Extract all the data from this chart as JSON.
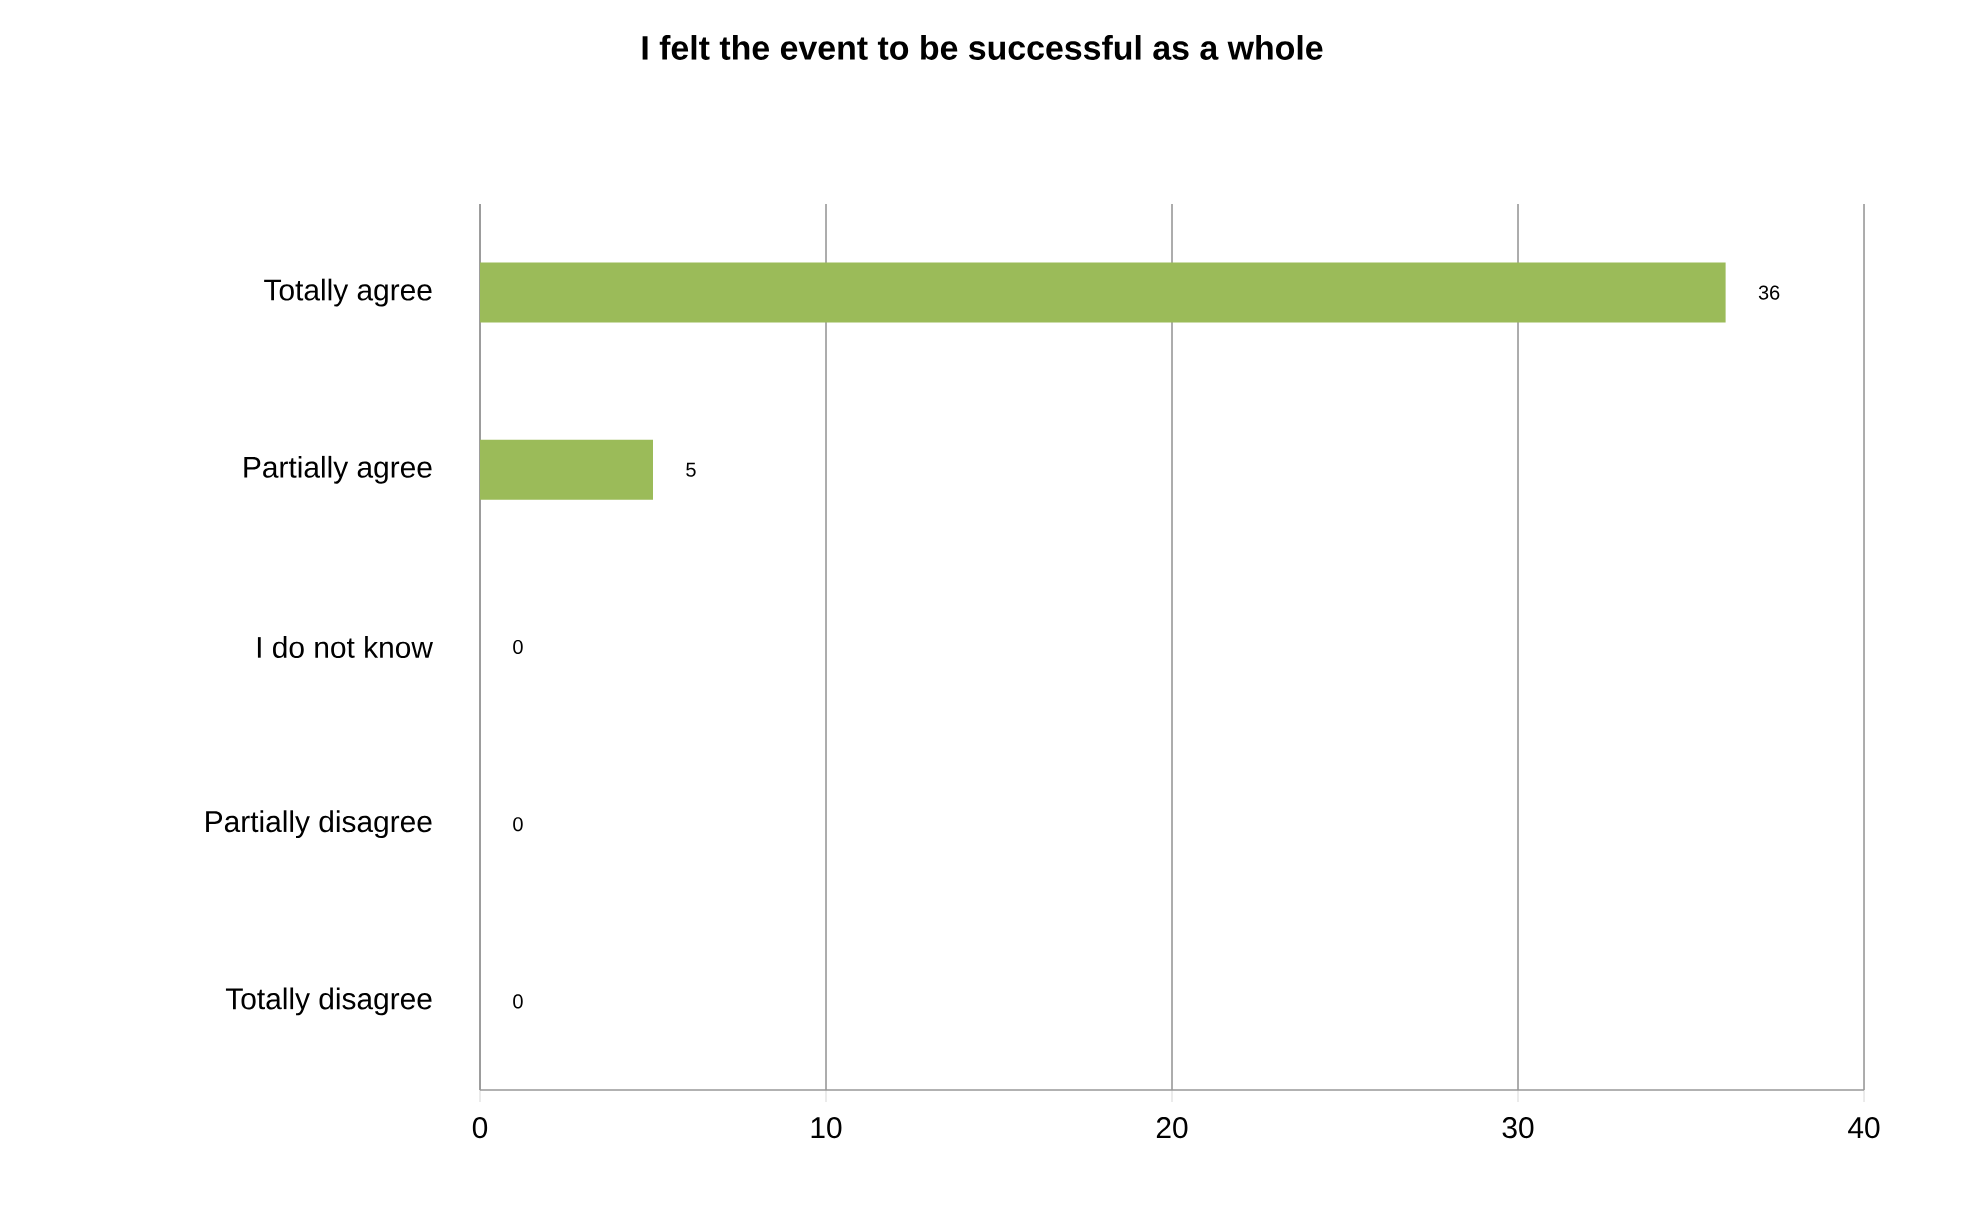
{
  "chart_data": {
    "type": "bar",
    "orientation": "horizontal",
    "title": "I felt the event to be successful as a whole",
    "categories": [
      "Totally agree",
      "Partially agree",
      "I do not know",
      "Partially disagree",
      "Totally disagree"
    ],
    "values": [
      36,
      5,
      0,
      0,
      0
    ],
    "color": "#9bbb59",
    "xlim": [
      0,
      40
    ],
    "xticks": [
      0,
      10,
      20,
      30,
      40
    ],
    "grid": "x",
    "data_labels": true
  }
}
